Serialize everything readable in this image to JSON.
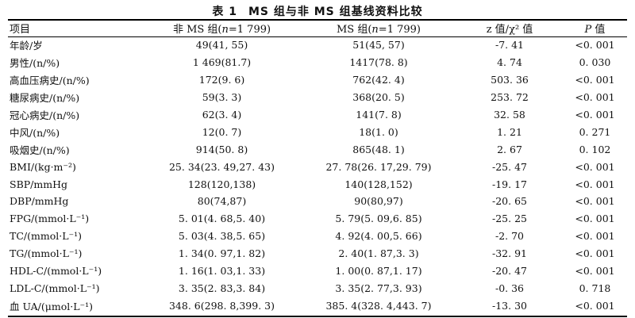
{
  "table_title": {
    "number": "表 1",
    "text": "MS 组与非 MS 组基线资料比较"
  },
  "header": {
    "item": "项目",
    "non_ms": {
      "prefix": "非 MS 组(",
      "n_symbol": "n",
      "suffix": "=1 799)"
    },
    "ms": {
      "prefix": "MS 组(",
      "n_symbol": "n",
      "suffix": "=1 799)"
    },
    "stat": "z 值/χ² 值",
    "p": {
      "symbol": "P",
      "suffix": " 值"
    }
  },
  "rows": [
    {
      "item": "年龄/岁",
      "non_ms": "49(41, 55)",
      "ms": "51(45, 57)",
      "stat": "-7. 41",
      "p": "<0. 001"
    },
    {
      "item": "男性/(n/%)",
      "non_ms": "1 469(81.7)",
      "ms": "1417(78. 8)",
      "stat": "4. 74",
      "p": "0. 030"
    },
    {
      "item": "高血压病史/(n/%)",
      "non_ms": "172(9. 6)",
      "ms": "762(42. 4)",
      "stat": "503. 36",
      "p": "<0. 001"
    },
    {
      "item": "糖尿病史/(n/%)",
      "non_ms": "59(3. 3)",
      "ms": "368(20. 5)",
      "stat": "253. 72",
      "p": "<0. 001"
    },
    {
      "item": "冠心病史/(n/%)",
      "non_ms": "62(3. 4)",
      "ms": "141(7. 8)",
      "stat": "32. 58",
      "p": "<0. 001"
    },
    {
      "item": "中风/(n/%)",
      "non_ms": "12(0. 7)",
      "ms": "18(1. 0)",
      "stat": "1. 21",
      "p": "0. 271"
    },
    {
      "item": "吸烟史/(n/%)",
      "non_ms": "914(50. 8)",
      "ms": "865(48. 1)",
      "stat": "2. 67",
      "p": "0. 102"
    },
    {
      "item": "BMI/(kg·m⁻²)",
      "non_ms": "25. 34(23. 49,27. 43)",
      "ms": "27. 78(26. 17,29. 79)",
      "stat": "-25. 47",
      "p": "<0. 001"
    },
    {
      "item": "SBP/mmHg",
      "non_ms": "128(120,138)",
      "ms": "140(128,152)",
      "stat": "-19. 17",
      "p": "<0. 001"
    },
    {
      "item": "DBP/mmHg",
      "non_ms": "80(74,87)",
      "ms": "90(80,97)",
      "stat": "-20. 65",
      "p": "<0. 001"
    },
    {
      "item": "FPG/(mmol·L⁻¹)",
      "non_ms": "5. 01(4. 68,5. 40)",
      "ms": "5. 79(5. 09,6. 85)",
      "stat": "-25. 25",
      "p": "<0. 001"
    },
    {
      "item": "TC/(mmol·L⁻¹)",
      "non_ms": "5. 03(4. 38,5. 65)",
      "ms": "4. 92(4. 00,5. 66)",
      "stat": "-2. 70",
      "p": "<0. 001"
    },
    {
      "item": "TG/(mmol·L⁻¹)",
      "non_ms": "1. 34(0. 97,1. 82)",
      "ms": "2. 40(1. 87,3. 3)",
      "stat": "-32. 91",
      "p": "<0. 001"
    },
    {
      "item": "HDL-C/(mmol·L⁻¹)",
      "non_ms": "1. 16(1. 03,1. 33)",
      "ms": "1. 00(0. 87,1. 17)",
      "stat": "-20. 47",
      "p": "<0. 001"
    },
    {
      "item": "LDL-C/(mmol·L⁻¹)",
      "non_ms": "3. 35(2. 83,3. 84)",
      "ms": "3. 35(2. 77,3. 93)",
      "stat": "-0. 36",
      "p": "0. 718"
    },
    {
      "item": "血 UA/(μmol·L⁻¹)",
      "non_ms": "348. 6(298. 8,399. 3)",
      "ms": "385. 4(328. 4,443. 7)",
      "stat": "-13. 30",
      "p": "<0. 001"
    }
  ]
}
